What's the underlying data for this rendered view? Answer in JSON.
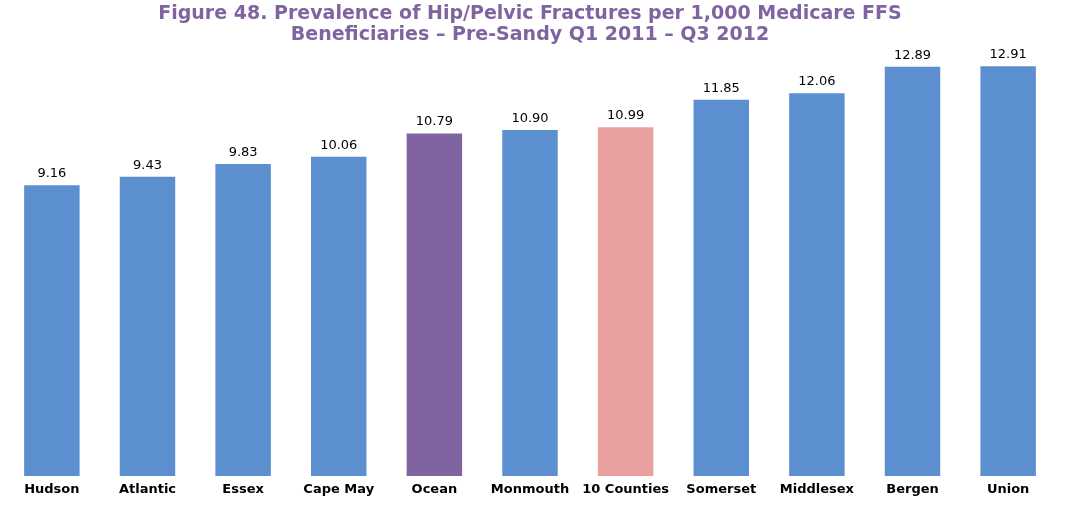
{
  "chart_data": {
    "type": "bar",
    "title": "Figure 48. Prevalence of Hip/Pelvic Fractures per 1,000 Medicare FFS Beneficiaries – Pre-Sandy Q1 2011 – Q3 2012",
    "categories": [
      "Hudson",
      "Atlantic",
      "Essex",
      "Cape May",
      "Ocean",
      "Monmouth",
      "10 Counties",
      "Somerset",
      "Middlesex",
      "Bergen",
      "Union"
    ],
    "values": [
      9.16,
      9.43,
      9.83,
      10.06,
      10.79,
      10.9,
      10.99,
      11.85,
      12.06,
      12.89,
      12.91
    ],
    "colors": [
      "#5b8fcf",
      "#5b8fcf",
      "#5b8fcf",
      "#5b8fcf",
      "#8064a2",
      "#5b8fcf",
      "#e8a0a0",
      "#5b8fcf",
      "#5b8fcf",
      "#5b8fcf",
      "#5b8fcf"
    ],
    "value_labels": [
      "9.16",
      "9.43",
      "9.83",
      "10.06",
      "10.79",
      "10.90",
      "10.99",
      "11.85",
      "12.06",
      "12.89",
      "12.91"
    ],
    "grid": false
  }
}
